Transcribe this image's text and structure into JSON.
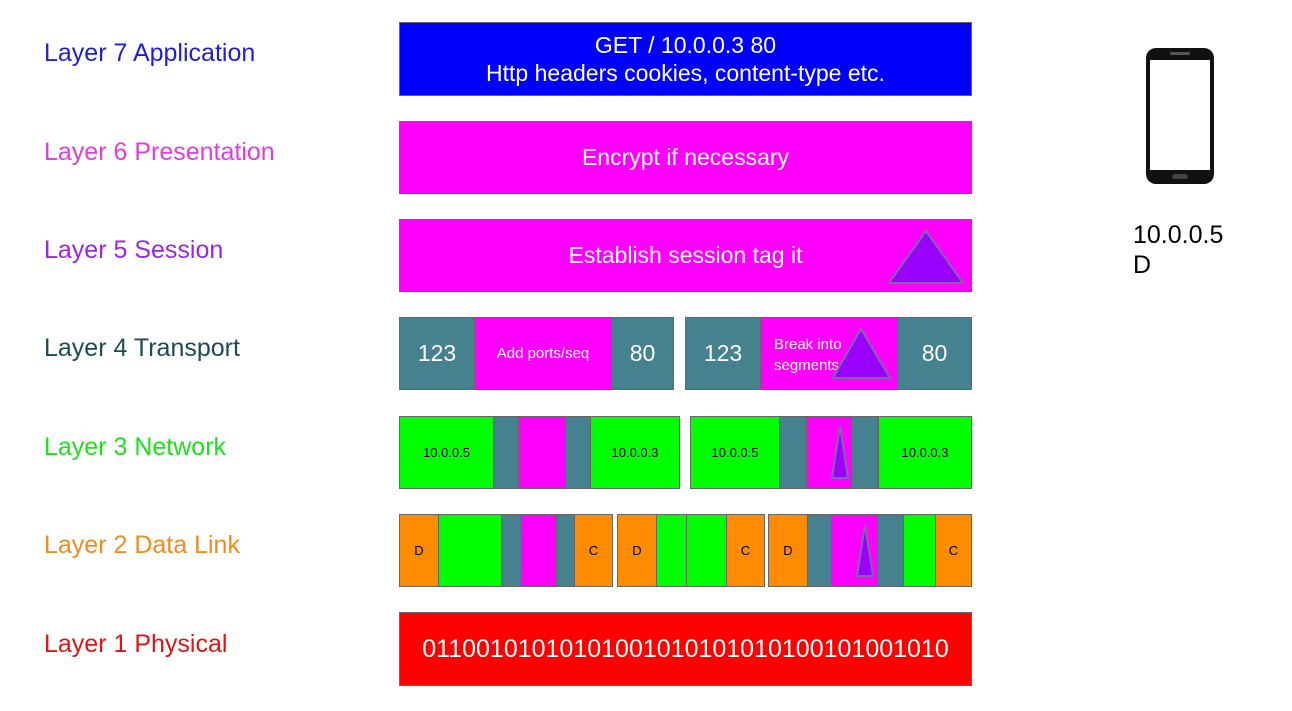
{
  "colors": {
    "application": "#0000ff",
    "presentation": "#ff00ff",
    "session": "#9900ff",
    "transport": "#134f5c",
    "network": "#00ee00",
    "datalink": "#ff8c00",
    "physical": "#ff0000",
    "triangle": "#9900ff"
  },
  "layers": [
    {
      "label": "Layer 7 Application"
    },
    {
      "label": "Layer 6 Presentation"
    },
    {
      "label": "Layer 5 Session"
    },
    {
      "label": "Layer 4 Transport"
    },
    {
      "label": "Layer 3 Network"
    },
    {
      "label": "Layer 2 Data Link"
    },
    {
      "label": "Layer 1 Physical"
    }
  ],
  "application_box": {
    "line1": "GET / 10.0.0.3 80",
    "line2": "Http headers cookies, content-type etc."
  },
  "presentation_box": {
    "text": "Encrypt if necessary"
  },
  "session_box": {
    "text": "Establish session tag it"
  },
  "transport": {
    "segment1": {
      "src_port": "123",
      "payload": "Add ports/seq",
      "dst_port": "80"
    },
    "segment2": {
      "src_port": "123",
      "payload": "Break into segments",
      "dst_port": "80"
    }
  },
  "network": {
    "packet1": {
      "src_ip": "10.0.0.5",
      "dst_ip": "10.0.0.3"
    },
    "packet2": {
      "src_ip": "10.0.0.5",
      "dst_ip": "10.0.0.3"
    }
  },
  "datalink": {
    "frame1": {
      "src": "D",
      "dst": "C"
    },
    "frame2": {
      "src": "D",
      "dst": "C"
    },
    "frame3": {
      "src": "D",
      "dst": "C"
    }
  },
  "physical_box": {
    "bits": "01100101010101001010101010100101001010"
  },
  "device": {
    "ip": "10.0.0.5",
    "mac": "D",
    "icon": "smartphone-icon"
  }
}
